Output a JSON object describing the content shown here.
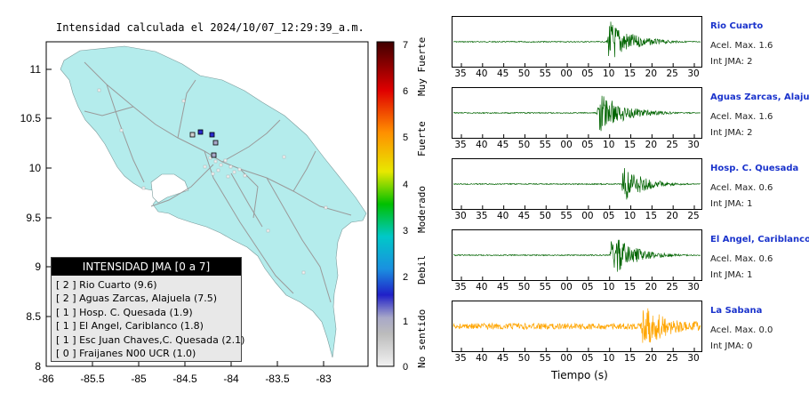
{
  "map": {
    "title": "Intensidad calculada el 2024/10/07_12:29:39_a.m.",
    "y_ticks": [
      "11",
      "10.5",
      "10",
      "9.5",
      "9",
      "8.5",
      "8"
    ],
    "x_ticks": [
      "-86",
      "-85.5",
      "-85",
      "-84.5",
      "-84",
      "-83.5",
      "-83"
    ],
    "land_color": "#b4ecec",
    "ocean_color": "#ffffff"
  },
  "legend": {
    "title": "INTENSIDAD JMA [0 a 7]",
    "entries": [
      "[ 2 ]  Rio Cuarto (9.6)",
      "[ 2 ]  Aguas Zarcas, Alajuela (7.5)",
      "[ 1 ]  Hosp. C. Quesada (1.9)",
      "[ 1 ]  El Angel, Cariblanco (1.8)",
      "[ 1 ]  Esc Juan Chaves,C. Quesada (2.1)",
      "[ 0 ]  Fraijanes N00 UCR (1.0)"
    ]
  },
  "colorbar": {
    "ticks": [
      "7",
      "6",
      "5",
      "4",
      "3",
      "2",
      "1",
      "0"
    ],
    "labels": [
      "Muy Fuerte",
      "Fuerte",
      "Moderado",
      "Debil",
      "No sentido"
    ]
  },
  "stations": [
    {
      "name": "Rio Cuarto",
      "acel": "Acel. Max. 1.6",
      "jma": "Int JMA: 2",
      "color": "#006400",
      "ticks": [
        "35",
        "40",
        "45",
        "50",
        "55",
        "00",
        "05",
        "10",
        "15",
        "20",
        "25",
        "30"
      ]
    },
    {
      "name": "Aguas Zarcas, Alajuela",
      "acel": "Acel. Max. 1.6",
      "jma": "Int JMA: 2",
      "color": "#006400",
      "ticks": [
        "35",
        "40",
        "45",
        "50",
        "55",
        "00",
        "05",
        "10",
        "15",
        "20",
        "25",
        "30"
      ]
    },
    {
      "name": "Hosp. C. Quesada",
      "acel": "Acel. Max. 0.6",
      "jma": "Int JMA: 1",
      "color": "#006400",
      "ticks": [
        "30",
        "35",
        "40",
        "45",
        "50",
        "55",
        "00",
        "05",
        "10",
        "15",
        "20",
        "25"
      ]
    },
    {
      "name": "El Angel, Cariblanco",
      "acel": "Acel. Max. 0.6",
      "jma": "Int JMA: 1",
      "color": "#006400",
      "ticks": [
        "35",
        "40",
        "45",
        "50",
        "55",
        "00",
        "05",
        "10",
        "15",
        "20",
        "25",
        "30"
      ]
    },
    {
      "name": "La Sabana",
      "acel": "Acel. Max. 0.0",
      "jma": "Int JMA: 0",
      "color": "#ffa500",
      "ticks": [
        "35",
        "40",
        "45",
        "50",
        "55",
        "00",
        "05",
        "10",
        "15",
        "20",
        "25",
        "30"
      ]
    }
  ],
  "traces_xlabel": "Tiempo (s)"
}
